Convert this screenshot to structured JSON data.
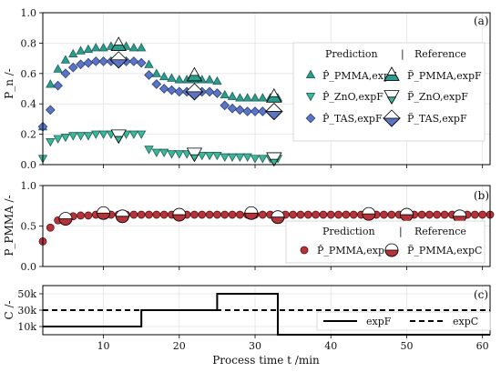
{
  "colors": {
    "pmma_pred": "#2a9d8f",
    "zno_pred": "#3bb89a",
    "tas_pred": "#5b74c4",
    "pmma_c": "#b5343a",
    "grid": "#e3e3e3"
  },
  "chart_data": [
    {
      "panel": "(a)",
      "type": "scatter",
      "ylabel": "P_n /-",
      "ylim": [
        0,
        1.0
      ],
      "yticks": [
        "0.0",
        "0.2",
        "0.4",
        "0.6",
        "0.8",
        "1.0"
      ],
      "xlim": [
        2,
        61
      ],
      "legend_headers": {
        "prediction": "Prediction",
        "separator": "|",
        "reference": "Reference"
      },
      "legend_labels": [
        "P̂_PMMA,expF",
        "P̂_ZnO,expF",
        "P̂_TAS,expF",
        "P̃_PMMA,expF",
        "P̃_ZnO,expF",
        "P̃_TAS,expF"
      ],
      "series": [
        {
          "name": "P̂_PMMA,expF",
          "marker": "triangle-up",
          "x": [
            2,
            3,
            4,
            5,
            6,
            7,
            8,
            9,
            10,
            11,
            12,
            13,
            14,
            15,
            16,
            17,
            18,
            19,
            20,
            21,
            22,
            23,
            24,
            25,
            26,
            27,
            28,
            29,
            30,
            31,
            32,
            33
          ],
          "y": [
            0.25,
            0.53,
            0.63,
            0.69,
            0.73,
            0.75,
            0.76,
            0.77,
            0.77,
            0.78,
            0.78,
            0.78,
            0.77,
            0.77,
            0.66,
            0.6,
            0.58,
            0.57,
            0.56,
            0.56,
            0.56,
            0.56,
            0.56,
            0.55,
            0.46,
            0.45,
            0.44,
            0.44,
            0.44,
            0.44,
            0.44,
            0.44
          ]
        },
        {
          "name": "P̂_ZnO,expF",
          "marker": "triangle-down",
          "x": [
            2,
            3,
            4,
            5,
            6,
            7,
            8,
            9,
            10,
            11,
            12,
            13,
            14,
            15,
            16,
            17,
            18,
            19,
            20,
            21,
            22,
            23,
            24,
            25,
            26,
            27,
            28,
            29,
            30,
            31,
            32,
            33
          ],
          "y": [
            0.04,
            0.15,
            0.17,
            0.18,
            0.19,
            0.19,
            0.19,
            0.2,
            0.2,
            0.2,
            0.2,
            0.2,
            0.2,
            0.2,
            0.1,
            0.08,
            0.08,
            0.07,
            0.07,
            0.07,
            0.07,
            0.06,
            0.06,
            0.06,
            0.05,
            0.05,
            0.05,
            0.05,
            0.04,
            0.04,
            0.04,
            0.04
          ]
        },
        {
          "name": "P̂_TAS,expF",
          "marker": "diamond",
          "x": [
            2,
            3,
            4,
            5,
            6,
            7,
            8,
            9,
            10,
            11,
            12,
            13,
            14,
            15,
            16,
            17,
            18,
            19,
            20,
            21,
            22,
            23,
            24,
            25,
            26,
            27,
            28,
            29,
            30,
            31,
            32,
            33
          ],
          "y": [
            0.25,
            0.36,
            0.52,
            0.6,
            0.64,
            0.66,
            0.67,
            0.68,
            0.68,
            0.68,
            0.68,
            0.68,
            0.68,
            0.67,
            0.59,
            0.53,
            0.5,
            0.49,
            0.48,
            0.48,
            0.48,
            0.48,
            0.48,
            0.47,
            0.39,
            0.37,
            0.36,
            0.35,
            0.35,
            0.35,
            0.35,
            0.35
          ]
        },
        {
          "name": "P̃_PMMA,expF",
          "marker": "ref-triangle-up",
          "x": [
            12,
            22,
            32.5
          ],
          "y": [
            0.79,
            0.59,
            0.45
          ]
        },
        {
          "name": "P̃_ZnO,expF",
          "marker": "ref-triangle-down",
          "x": [
            12,
            22,
            32.5
          ],
          "y": [
            0.19,
            0.07,
            0.04
          ]
        },
        {
          "name": "P̃_TAS,expF",
          "marker": "ref-diamond",
          "x": [
            12,
            22,
            32.5
          ],
          "y": [
            0.69,
            0.48,
            0.35
          ]
        }
      ]
    },
    {
      "panel": "(b)",
      "type": "scatter",
      "ylabel": "P_PMMA /-",
      "ylim": [
        0,
        1.0
      ],
      "yticks": [
        "0.0",
        "0.5",
        "1.0"
      ],
      "xlim": [
        2,
        61
      ],
      "legend_headers": {
        "prediction": "Prediction",
        "separator": "|",
        "reference": "Reference"
      },
      "legend_labels": [
        "P̂_PMMA,expC",
        "P̃_PMMA,expC"
      ],
      "series": [
        {
          "name": "P̂_PMMA,expC",
          "marker": "circle",
          "x": [
            2,
            3,
            4,
            5,
            6,
            7,
            8,
            9,
            10,
            11,
            12,
            13,
            14,
            15,
            16,
            17,
            18,
            19,
            20,
            21,
            22,
            23,
            24,
            25,
            26,
            27,
            28,
            29,
            30,
            31,
            32,
            33,
            34,
            35,
            36,
            37,
            38,
            39,
            40,
            41,
            42,
            43,
            44,
            45,
            46,
            47,
            48,
            49,
            50,
            51,
            52,
            53,
            54,
            55,
            56,
            57,
            58,
            59,
            60,
            61
          ],
          "y": [
            0.31,
            0.48,
            0.57,
            0.6,
            0.62,
            0.63,
            0.63,
            0.64,
            0.64,
            0.64,
            0.64,
            0.64,
            0.64,
            0.64,
            0.64,
            0.64,
            0.64,
            0.64,
            0.64,
            0.64,
            0.64,
            0.64,
            0.64,
            0.64,
            0.64,
            0.64,
            0.64,
            0.64,
            0.64,
            0.64,
            0.64,
            0.64,
            0.64,
            0.64,
            0.64,
            0.64,
            0.64,
            0.64,
            0.64,
            0.64,
            0.64,
            0.64,
            0.64,
            0.64,
            0.64,
            0.64,
            0.64,
            0.64,
            0.64,
            0.64,
            0.64,
            0.64,
            0.64,
            0.64,
            0.64,
            0.64,
            0.64,
            0.64,
            0.64,
            0.64
          ]
        },
        {
          "name": "P̃_PMMA,expC",
          "marker": "half-circle",
          "x": [
            5,
            10,
            12.5,
            20,
            29.5,
            33,
            45,
            50,
            57
          ],
          "y": [
            0.59,
            0.66,
            0.62,
            0.64,
            0.66,
            0.61,
            0.65,
            0.64,
            0.62
          ]
        }
      ]
    },
    {
      "panel": "(c)",
      "type": "line",
      "xlabel": "Process time t /min",
      "ylabel": "C /-",
      "ylim": [
        0,
        60000
      ],
      "yticks": [
        "10k",
        "30k",
        "50k"
      ],
      "xticks": [
        "10",
        "20",
        "30",
        "40",
        "50",
        "60"
      ],
      "xlim": [
        2,
        61
      ],
      "legend_labels": [
        "expF",
        "expC"
      ],
      "series": [
        {
          "name": "expF",
          "style": "solid",
          "x": [
            2,
            15,
            15,
            25,
            25,
            33,
            33,
            61
          ],
          "y": [
            10000,
            10000,
            30000,
            30000,
            50000,
            50000,
            0,
            0
          ]
        },
        {
          "name": "expC",
          "style": "dashed",
          "x": [
            2,
            61
          ],
          "y": [
            30000,
            30000
          ]
        }
      ]
    }
  ]
}
